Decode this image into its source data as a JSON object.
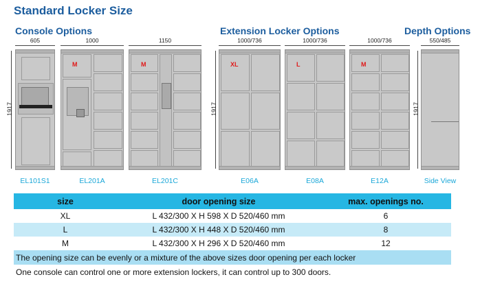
{
  "title": "Standard Locker Size",
  "sections": {
    "console": "Console Options",
    "extension": "Extension Locker Options",
    "depth": "Depth Options"
  },
  "height_dim": "1917",
  "cabinets": [
    {
      "id": "EL101S1",
      "width_dim": "605",
      "tag": ""
    },
    {
      "id": "EL201A",
      "width_dim": "1000",
      "tag": "M"
    },
    {
      "id": "EL201C",
      "width_dim": "1150",
      "tag": "M"
    },
    {
      "id": "E06A",
      "width_dim": "1000/736",
      "tag": "XL"
    },
    {
      "id": "E08A",
      "width_dim": "1000/736",
      "tag": "L"
    },
    {
      "id": "E12A",
      "width_dim": "1000/736",
      "tag": "M"
    },
    {
      "id": "Side View",
      "width_dim": "550/485",
      "tag": ""
    }
  ],
  "table": {
    "headers": [
      "size",
      "door opening size",
      "max. openings no."
    ],
    "rows": [
      {
        "size": "XL",
        "opening": "L 432/300 X H 598 X D 520/460 mm",
        "max": "6"
      },
      {
        "size": "L",
        "opening": "L 432/300 X H 448 X D 520/460 mm",
        "max": "8"
      },
      {
        "size": "M",
        "opening": "L 432/300 X H 296 X D 520/460 mm",
        "max": "12"
      }
    ],
    "note1": "The opening size can be evenly or a mixture of the above sizes door opening per each locker",
    "note2": "One console can control one or more extension lockers, it can control up to 300 doors."
  },
  "colors": {
    "title": "#1c5d9e",
    "label": "#1aa7d8",
    "table_header": "#26b6e3",
    "tag": "#e01919"
  }
}
